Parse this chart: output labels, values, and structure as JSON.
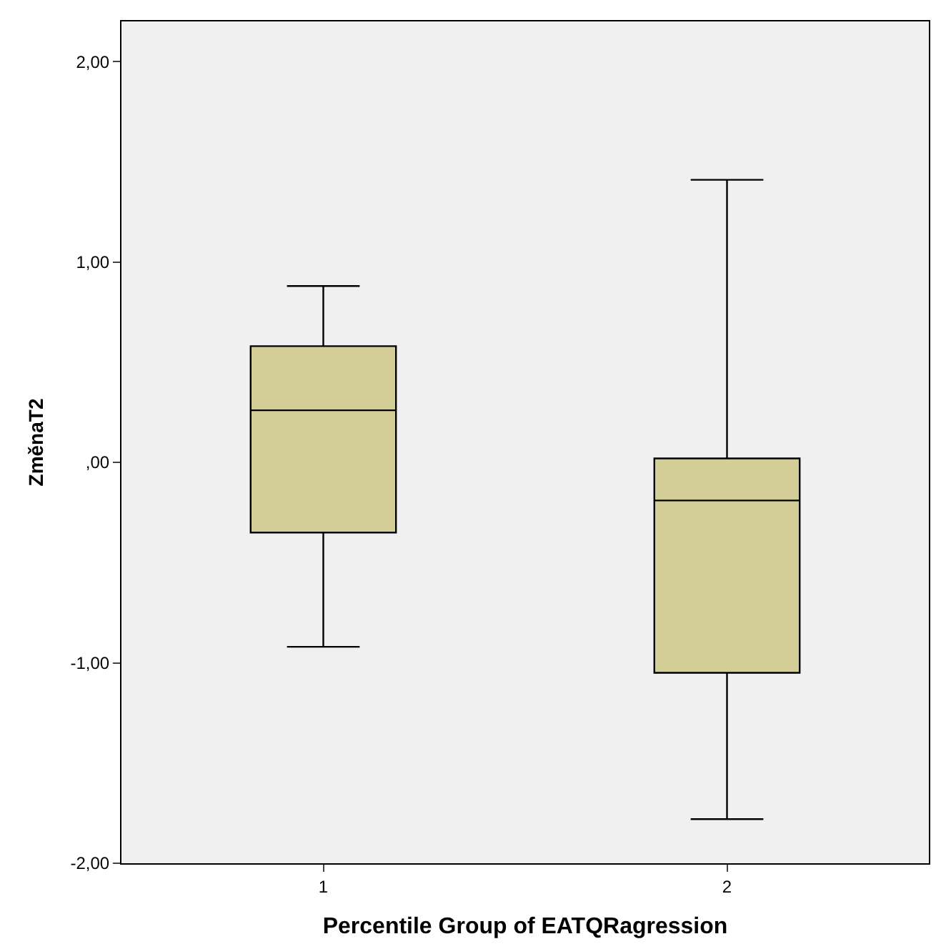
{
  "chart_data": {
    "type": "box",
    "xlabel": "Percentile Group of EATQRagression",
    "ylabel": "ZměnaT2",
    "categories": [
      "1",
      "2"
    ],
    "boxes": [
      {
        "low": -0.92,
        "q1": -0.35,
        "median": 0.26,
        "q3": 0.58,
        "high": 0.88
      },
      {
        "low": -1.78,
        "q1": -1.05,
        "median": -0.19,
        "q3": 0.02,
        "high": 1.41
      }
    ],
    "color": "#d3ce97",
    "ylim": [
      -2,
      2.2
    ],
    "yticks": [
      {
        "value": -2,
        "label": "-2,00"
      },
      {
        "value": -1,
        "label": "-1,00"
      },
      {
        "value": 0,
        "label": ",00"
      },
      {
        "value": 1,
        "label": "1,00"
      },
      {
        "value": 2,
        "label": "2,00"
      }
    ],
    "grid": false,
    "legend": false
  }
}
